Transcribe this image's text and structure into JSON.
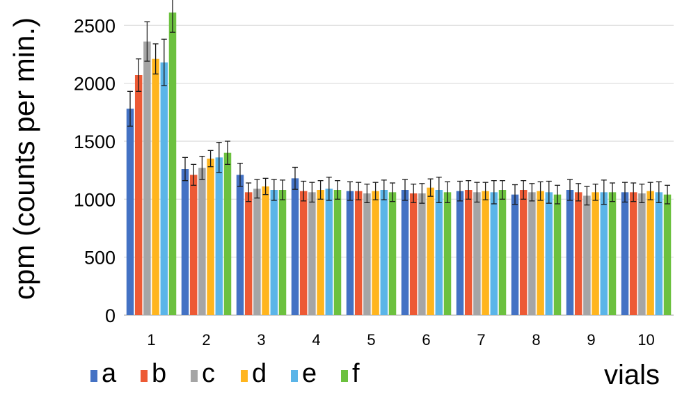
{
  "chart_data": {
    "type": "bar",
    "title": "",
    "xlabel": "vials",
    "ylabel": "cpm (counts per min.)",
    "ylim": [
      0,
      2700
    ],
    "yticks": [
      0,
      500,
      1000,
      1500,
      2000,
      2500
    ],
    "grid": true,
    "legend_position": "bottom-left",
    "categories": [
      "1",
      "2",
      "3",
      "4",
      "5",
      "6",
      "7",
      "8",
      "9",
      "10"
    ],
    "series": [
      {
        "name": "a",
        "color": "#4472c4",
        "values": [
          1780,
          1260,
          1210,
          1180,
          1070,
          1080,
          1070,
          1040,
          1080,
          1060
        ],
        "errors": [
          150,
          100,
          100,
          95,
          80,
          90,
          85,
          85,
          90,
          85
        ]
      },
      {
        "name": "b",
        "color": "#ed5a35",
        "values": [
          2070,
          1210,
          1060,
          1070,
          1070,
          1050,
          1080,
          1080,
          1060,
          1060
        ],
        "errors": [
          140,
          90,
          80,
          85,
          75,
          80,
          80,
          80,
          75,
          80
        ]
      },
      {
        "name": "c",
        "color": "#a5a5a5",
        "values": [
          2360,
          1270,
          1090,
          1060,
          1050,
          1050,
          1060,
          1060,
          1030,
          1050
        ],
        "errors": [
          170,
          100,
          80,
          85,
          80,
          85,
          85,
          75,
          80,
          80
        ]
      },
      {
        "name": "d",
        "color": "#ffb51e",
        "values": [
          2210,
          1350,
          1110,
          1080,
          1070,
          1100,
          1070,
          1070,
          1060,
          1070
        ],
        "errors": [
          130,
          70,
          70,
          80,
          75,
          75,
          75,
          80,
          70,
          75
        ]
      },
      {
        "name": "e",
        "color": "#5bb5e8",
        "values": [
          2180,
          1360,
          1080,
          1090,
          1080,
          1080,
          1060,
          1060,
          1060,
          1060
        ],
        "errors": [
          200,
          130,
          90,
          100,
          85,
          110,
          100,
          95,
          105,
          90
        ]
      },
      {
        "name": "f",
        "color": "#6cc13f",
        "values": [
          2610,
          1400,
          1080,
          1080,
          1060,
          1060,
          1080,
          1040,
          1060,
          1040
        ],
        "errors": [
          170,
          100,
          85,
          80,
          80,
          90,
          80,
          80,
          80,
          80
        ]
      }
    ]
  }
}
